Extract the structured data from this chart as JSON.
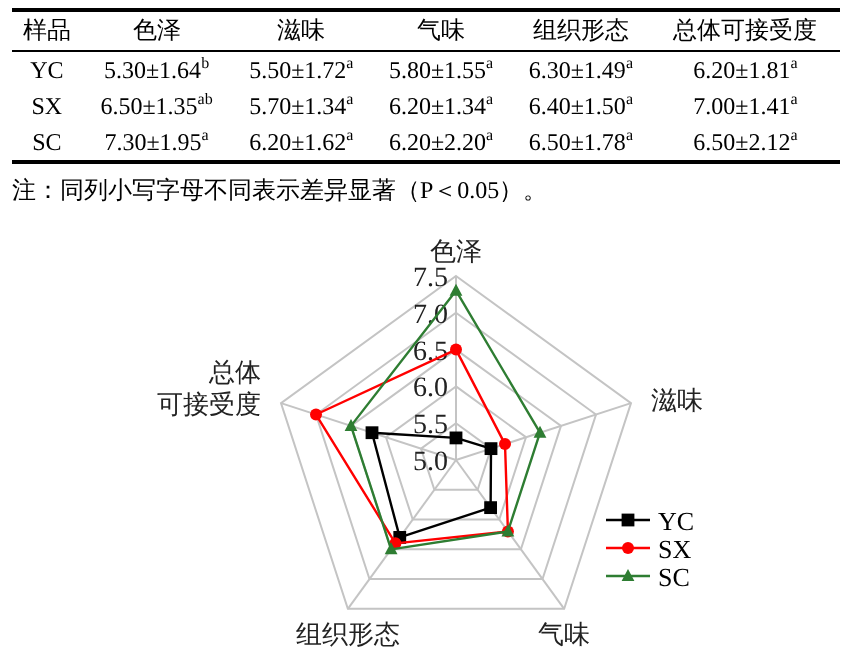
{
  "chart_data": [
    {
      "type": "other",
      "categories": [
        "样品",
        "色泽",
        "滋味",
        "气味",
        "组织形态",
        "总体可接受度"
      ],
      "y_categories": [
        "YC",
        "SX",
        "SC"
      ],
      "cell_labels": [
        [
          "5.30±1.64$^{b}$",
          "5.50±1.72$^{a}$",
          "5.80±1.55$^{a}$",
          "6.30±1.49$^{a}$",
          "6.20±1.81$^{a}$"
        ],
        [
          "6.50±1.35$^{ab}$",
          "5.70±1.34$^{a}$",
          "6.20±1.34$^{a}$",
          "6.40±1.50$^{a}$",
          "7.00±1.41$^{a}$"
        ],
        [
          "7.30±1.95$^{a}$",
          "6.20±1.62$^{a}$",
          "6.20±2.20$^{a}$",
          "6.50±1.78$^{a}$",
          "6.50±2.12$^{a}$"
        ]
      ],
      "annotations": [
        "注：同列小写字母不同表示差异显著（P＜0.05）。"
      ]
    },
    {
      "type": "radar",
      "categories": [
        "色泽",
        "滋味",
        "气味",
        "组织形态",
        "总体可接受度"
      ],
      "series": [
        {
          "name": "YC",
          "color": "#000000",
          "marker": "square",
          "values": [
            5.3,
            5.5,
            5.8,
            6.3,
            6.2
          ]
        },
        {
          "name": "SX",
          "color": "#ff0000",
          "marker": "circle",
          "values": [
            6.5,
            5.7,
            6.2,
            6.4,
            7.0
          ]
        },
        {
          "name": "SC",
          "color": "#2e7d32",
          "marker": "triangle",
          "values": [
            7.3,
            6.2,
            6.2,
            6.5,
            6.5
          ]
        }
      ],
      "ylim": [
        5,
        7.5
      ],
      "yticks": [
        {
          "value": 5,
          "label": "5.0"
        },
        {
          "value": 5.5,
          "label": "5.5"
        },
        {
          "value": 6,
          "label": "6.0"
        },
        {
          "value": 6.5,
          "label": "6.5"
        },
        {
          "value": 7,
          "label": "7.0"
        },
        {
          "value": 7.5,
          "label": "7.5"
        }
      ],
      "grid": true,
      "legend": "bottom right"
    }
  ]
}
